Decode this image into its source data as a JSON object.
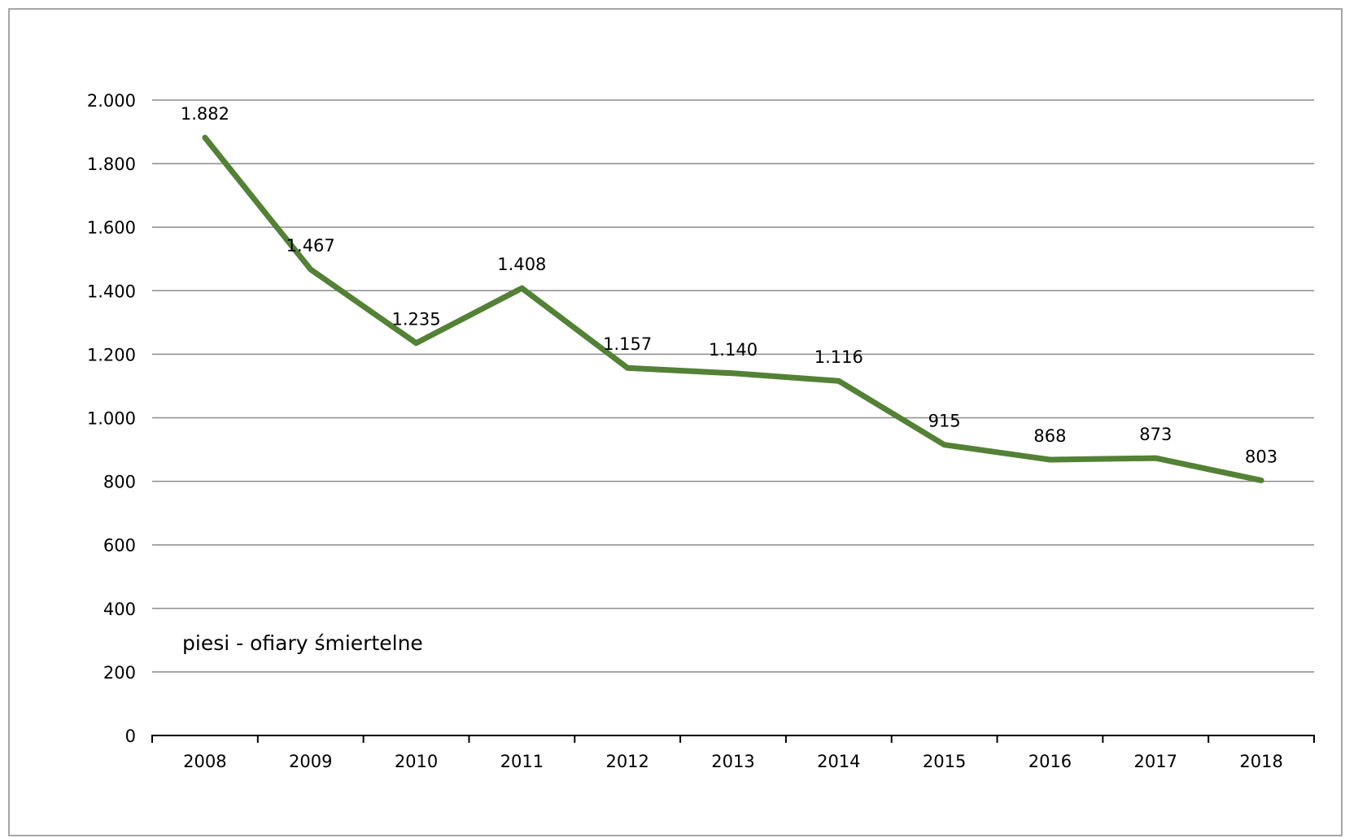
{
  "chart_data": {
    "type": "line",
    "categories": [
      "2008",
      "2009",
      "2010",
      "2011",
      "2012",
      "2013",
      "2014",
      "2015",
      "2016",
      "2017",
      "2018"
    ],
    "series": [
      {
        "name": "piesi - ofiary śmiertelne",
        "values": [
          1882,
          1467,
          1235,
          1408,
          1157,
          1140,
          1116,
          915,
          868,
          873,
          803
        ],
        "data_labels": [
          "1.882",
          "1.467",
          "1.235",
          "1.408",
          "1.157",
          "1.140",
          "1.116",
          "915",
          "868",
          "873",
          "803"
        ],
        "color": "#538135"
      }
    ],
    "ylim": [
      0,
      2000
    ],
    "yticks": [
      0,
      200,
      400,
      600,
      800,
      1000,
      1200,
      1400,
      1600,
      1800,
      2000
    ],
    "ytick_labels": [
      "0",
      "200",
      "400",
      "600",
      "800",
      "1.000",
      "1.200",
      "1.400",
      "1.600",
      "1.800",
      "2.000"
    ],
    "grid": true,
    "gridline_color": "#8c8c8c",
    "axis_color": "#000000",
    "title": "",
    "xlabel": "",
    "ylabel": ""
  }
}
